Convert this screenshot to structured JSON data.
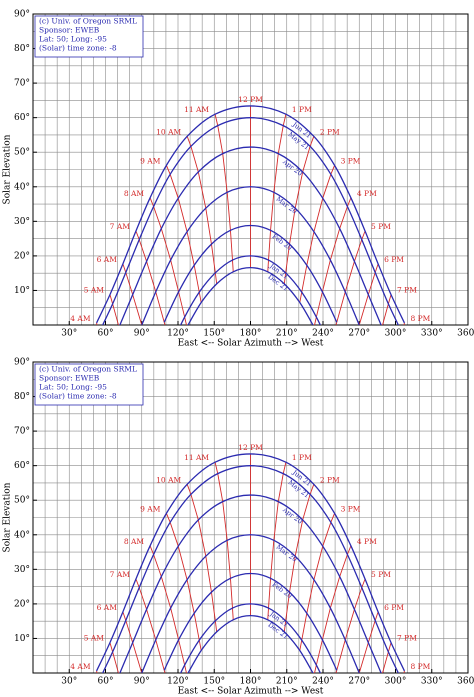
{
  "chart_data": [
    {
      "type": "sunpath",
      "xlabel": "East <-- Solar Azimuth --> West",
      "ylabel": "Solar Elevation",
      "info_lines": [
        "(c) Univ. of Oregon SRML",
        "Sponsor: EWEB",
        "Lat: 50; Long: -95",
        "(Solar) time zone: -8"
      ],
      "xlim": [
        0,
        360
      ],
      "ylim": [
        0,
        90
      ],
      "xticks": [
        {
          "value": 30,
          "label": "30°"
        },
        {
          "value": 60,
          "label": "60°"
        },
        {
          "value": 90,
          "label": "90°"
        },
        {
          "value": 120,
          "label": "120°"
        },
        {
          "value": 150,
          "label": "150°"
        },
        {
          "value": 180,
          "label": "180°"
        },
        {
          "value": 210,
          "label": "210°"
        },
        {
          "value": 240,
          "label": "240°"
        },
        {
          "value": 270,
          "label": "270°"
        },
        {
          "value": 300,
          "label": "300°"
        },
        {
          "value": 330,
          "label": "330°"
        },
        {
          "value": 360,
          "label": "360°"
        }
      ],
      "yticks": [
        {
          "value": 10,
          "label": "10°"
        },
        {
          "value": 20,
          "label": "20°"
        },
        {
          "value": 30,
          "label": "30°"
        },
        {
          "value": 40,
          "label": "40°"
        },
        {
          "value": 50,
          "label": "50°"
        },
        {
          "value": 60,
          "label": "60°"
        },
        {
          "value": 70,
          "label": "70°"
        },
        {
          "value": 80,
          "label": "80°"
        },
        {
          "value": 90,
          "label": "90°"
        }
      ],
      "minor_xticks": [
        0,
        10,
        20,
        30,
        40,
        50,
        60,
        70,
        80,
        90,
        100,
        110,
        120,
        130,
        140,
        150,
        160,
        170,
        180,
        190,
        200,
        210,
        220,
        230,
        240,
        250,
        260,
        270,
        280,
        290,
        300,
        310,
        320,
        330,
        340,
        350,
        360
      ],
      "minor_yticks": [
        0,
        5,
        10,
        15,
        20,
        25,
        30,
        35,
        40,
        45,
        50,
        55,
        60,
        65,
        70,
        75,
        80,
        85,
        90
      ],
      "grid": true,
      "grid_color": "#8a8a8a",
      "hour_color": "#d42a2a",
      "hour_labels": [
        "4 AM",
        "5 AM",
        "6 AM",
        "7 AM",
        "8 AM",
        "9 AM",
        "10 AM",
        "11 AM",
        "12 PM",
        "1 PM",
        "2 PM",
        "3 PM",
        "4 PM",
        "5 PM",
        "6 PM",
        "7 PM",
        "8 PM"
      ],
      "series": [
        {
          "name": "Jun 21",
          "color": "#2b2bb0",
          "x": [
            52.6,
            63.7,
            74.4,
            85.2,
            96.9,
            110.4,
            127.6,
            150.7,
            180,
            209.3,
            232.4,
            249.6,
            263.1,
            274.8,
            285.6,
            296.3,
            307.4
          ],
          "values": [
            0.6,
            8.8,
            17.7,
            27.2,
            36.8,
            46.2,
            54.6,
            61.0,
            63.4,
            61.0,
            54.6,
            46.2,
            36.8,
            27.2,
            17.7,
            8.8,
            0.6
          ]
        },
        {
          "name": "May 21",
          "color": "#2b2bb0",
          "x": [
            54.5,
            65.9,
            76.8,
            87.9,
            99.8,
            113.5,
            130.7,
            152.9,
            180,
            207.1,
            229.3,
            246.5,
            260.2,
            272.1,
            283.2,
            294.1,
            305.5
          ],
          "values": [
            -2.3,
            6.1,
            15.2,
            24.7,
            34.3,
            43.6,
            51.7,
            57.7,
            60.0,
            57.7,
            51.7,
            43.6,
            34.3,
            24.7,
            15.2,
            6.1,
            -2.3
          ]
        },
        {
          "name": "Apr 20",
          "color": "#2b2bb0",
          "x": [
            null,
            71.2,
            82.5,
            94.0,
            106.2,
            120.2,
            136.8,
            157.0,
            180,
            203.0,
            223.2,
            239.8,
            253.8,
            266.0,
            277.5,
            288.8,
            null
          ],
          "values": [
            null,
            -0.6,
            8.8,
            18.4,
            27.9,
            36.7,
            44.3,
            49.6,
            51.5,
            49.6,
            44.3,
            36.7,
            27.9,
            18.4,
            8.8,
            -0.6,
            null
          ]
        },
        {
          "name": "Mar 20",
          "color": "#2b2bb0",
          "x": [
            null,
            null,
            90,
            101.6,
            113.9,
            127.5,
            143.0,
            160.7,
            180,
            199.3,
            217.0,
            232.5,
            246.1,
            258.4,
            270,
            null,
            null
          ],
          "values": [
            null,
            null,
            0,
            9.6,
            18.8,
            27.0,
            33.8,
            38.4,
            40.0,
            38.4,
            33.8,
            27.0,
            18.8,
            9.6,
            0,
            null,
            null
          ]
        },
        {
          "name": "Feb 20",
          "color": "#2b2bb0",
          "x": [
            null,
            null,
            null,
            108.6,
            120.5,
            133.4,
            147.7,
            163.4,
            180,
            196.6,
            212.3,
            226.6,
            239.5,
            251.4,
            null,
            null,
            null
          ],
          "values": [
            null,
            null,
            null,
            0.8,
            9.6,
            17.3,
            23.4,
            27.4,
            28.8,
            27.4,
            23.4,
            17.3,
            9.6,
            0.8,
            null,
            null,
            null
          ]
        },
        {
          "name": "Jan 21",
          "color": "#2b2bb0",
          "x": [
            null,
            null,
            null,
            114.1,
            125.5,
            137.6,
            150.9,
            165.1,
            180,
            194.9,
            209.1,
            222.4,
            234.5,
            245.9,
            null,
            null,
            null
          ],
          "values": [
            null,
            null,
            null,
            -6.1,
            2.3,
            9.5,
            15.1,
            18.8,
            20.0,
            18.8,
            15.1,
            9.5,
            2.3,
            -6.1,
            null,
            null,
            null
          ]
        },
        {
          "name": "Dec 21",
          "color": "#2b2bb0",
          "x": [
            null,
            null,
            null,
            null,
            127.4,
            139.2,
            152.0,
            165.7,
            180,
            194.3,
            208.0,
            220.8,
            232.6,
            null,
            null,
            null,
            null
          ],
          "values": [
            null,
            null,
            null,
            null,
            -0.6,
            6.5,
            11.9,
            15.4,
            16.6,
            15.4,
            11.9,
            6.5,
            -0.6,
            null,
            null,
            null,
            null
          ]
        }
      ]
    },
    {
      "type": "sunpath",
      "xlabel": "East <-- Solar Azimuth --> West",
      "ylabel": "Solar Elevation",
      "info_lines": [
        "(c) Univ. of Oregon SRML",
        "Sponsor: EWEB",
        "Lat: 50; Long: -95",
        "(Solar) time zone: -8"
      ],
      "xlim": [
        0,
        360
      ],
      "ylim": [
        0,
        90
      ],
      "xticks": [
        {
          "value": 30,
          "label": "30°"
        },
        {
          "value": 60,
          "label": "60°"
        },
        {
          "value": 90,
          "label": "90°"
        },
        {
          "value": 120,
          "label": "120°"
        },
        {
          "value": 150,
          "label": "150°"
        },
        {
          "value": 180,
          "label": "180°"
        },
        {
          "value": 210,
          "label": "210°"
        },
        {
          "value": 240,
          "label": "240°"
        },
        {
          "value": 270,
          "label": "270°"
        },
        {
          "value": 300,
          "label": "300°"
        },
        {
          "value": 330,
          "label": "330°"
        },
        {
          "value": 360,
          "label": "360°"
        }
      ],
      "yticks": [
        {
          "value": 10,
          "label": "10°"
        },
        {
          "value": 20,
          "label": "20°"
        },
        {
          "value": 30,
          "label": "30°"
        },
        {
          "value": 40,
          "label": "40°"
        },
        {
          "value": 50,
          "label": "50°"
        },
        {
          "value": 60,
          "label": "60°"
        },
        {
          "value": 70,
          "label": "70°"
        },
        {
          "value": 80,
          "label": "80°"
        },
        {
          "value": 90,
          "label": "90°"
        }
      ],
      "minor_xticks": [
        0,
        10,
        20,
        30,
        40,
        50,
        60,
        70,
        80,
        90,
        100,
        110,
        120,
        130,
        140,
        150,
        160,
        170,
        180,
        190,
        200,
        210,
        220,
        230,
        240,
        250,
        260,
        270,
        280,
        290,
        300,
        310,
        320,
        330,
        340,
        350,
        360
      ],
      "minor_yticks": [
        0,
        5,
        10,
        15,
        20,
        25,
        30,
        35,
        40,
        45,
        50,
        55,
        60,
        65,
        70,
        75,
        80,
        85,
        90
      ],
      "grid": true,
      "grid_color": "#8a8a8a",
      "hour_color": "#d42a2a",
      "hour_labels": [
        "4 AM",
        "5 AM",
        "6 AM",
        "7 AM",
        "8 AM",
        "9 AM",
        "10 AM",
        "11 AM",
        "12 PM",
        "1 PM",
        "2 PM",
        "3 PM",
        "4 PM",
        "5 PM",
        "6 PM",
        "7 PM",
        "8 PM"
      ],
      "series": [
        {
          "name": "Jun 21",
          "color": "#2b2bb0",
          "x": [
            52.6,
            63.7,
            74.4,
            85.2,
            96.9,
            110.4,
            127.6,
            150.7,
            180,
            209.3,
            232.4,
            249.6,
            263.1,
            274.8,
            285.6,
            296.3,
            307.4
          ],
          "values": [
            0.6,
            8.8,
            17.7,
            27.2,
            36.8,
            46.2,
            54.6,
            61.0,
            63.4,
            61.0,
            54.6,
            46.2,
            36.8,
            27.2,
            17.7,
            8.8,
            0.6
          ]
        },
        {
          "name": "May 21",
          "color": "#2b2bb0",
          "x": [
            54.5,
            65.9,
            76.8,
            87.9,
            99.8,
            113.5,
            130.7,
            152.9,
            180,
            207.1,
            229.3,
            246.5,
            260.2,
            272.1,
            283.2,
            294.1,
            305.5
          ],
          "values": [
            -2.3,
            6.1,
            15.2,
            24.7,
            34.3,
            43.6,
            51.7,
            57.7,
            60.0,
            57.7,
            51.7,
            43.6,
            34.3,
            24.7,
            15.2,
            6.1,
            -2.3
          ]
        },
        {
          "name": "Apr 20",
          "color": "#2b2bb0",
          "x": [
            null,
            71.2,
            82.5,
            94.0,
            106.2,
            120.2,
            136.8,
            157.0,
            180,
            203.0,
            223.2,
            239.8,
            253.8,
            266.0,
            277.5,
            288.8,
            null
          ],
          "values": [
            null,
            -0.6,
            8.8,
            18.4,
            27.9,
            36.7,
            44.3,
            49.6,
            51.5,
            49.6,
            44.3,
            36.7,
            27.9,
            18.4,
            8.8,
            -0.6,
            null
          ]
        },
        {
          "name": "Mar 20",
          "color": "#2b2bb0",
          "x": [
            null,
            null,
            90,
            101.6,
            113.9,
            127.5,
            143.0,
            160.7,
            180,
            199.3,
            217.0,
            232.5,
            246.1,
            258.4,
            270,
            null,
            null
          ],
          "values": [
            null,
            null,
            0,
            9.6,
            18.8,
            27.0,
            33.8,
            38.4,
            40.0,
            38.4,
            33.8,
            27.0,
            18.8,
            9.6,
            0,
            null,
            null
          ]
        },
        {
          "name": "Feb 20",
          "color": "#2b2bb0",
          "x": [
            null,
            null,
            null,
            108.6,
            120.5,
            133.4,
            147.7,
            163.4,
            180,
            196.6,
            212.3,
            226.6,
            239.5,
            251.4,
            null,
            null,
            null
          ],
          "values": [
            null,
            null,
            null,
            0.8,
            9.6,
            17.3,
            23.4,
            27.4,
            28.8,
            27.4,
            23.4,
            17.3,
            9.6,
            0.8,
            null,
            null,
            null
          ]
        },
        {
          "name": "Jan 21",
          "color": "#2b2bb0",
          "x": [
            null,
            null,
            null,
            114.1,
            125.5,
            137.6,
            150.9,
            165.1,
            180,
            194.9,
            209.1,
            222.4,
            234.5,
            245.9,
            null,
            null,
            null
          ],
          "values": [
            null,
            null,
            null,
            -6.1,
            2.3,
            9.5,
            15.1,
            18.8,
            20.0,
            18.8,
            15.1,
            9.5,
            2.3,
            -6.1,
            null,
            null,
            null
          ]
        },
        {
          "name": "Dec 21",
          "color": "#2b2bb0",
          "x": [
            null,
            null,
            null,
            null,
            127.4,
            139.2,
            152.0,
            165.7,
            180,
            194.3,
            208.0,
            220.8,
            232.6,
            null,
            null,
            null,
            null
          ],
          "values": [
            null,
            null,
            null,
            null,
            -0.6,
            6.5,
            11.9,
            15.4,
            16.6,
            15.4,
            11.9,
            6.5,
            -0.6,
            null,
            null,
            null,
            null
          ]
        }
      ]
    }
  ]
}
